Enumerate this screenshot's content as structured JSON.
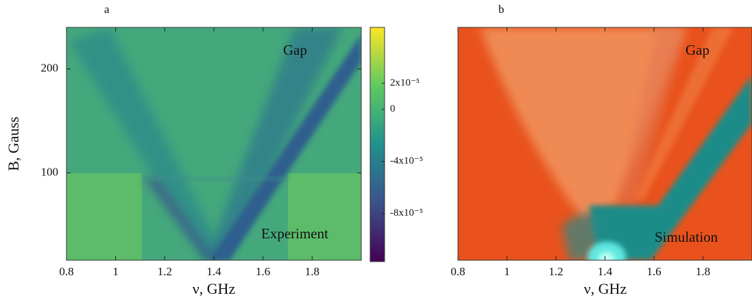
{
  "chart_data": [
    {
      "type": "heatmap",
      "label": "a",
      "xlabel": "ν, GHz",
      "ylabel": "B, Gauss",
      "xlim": [
        0.8,
        2.0
      ],
      "xticks": [
        0.8,
        1,
        1.2,
        1.4,
        1.6,
        1.8
      ],
      "ylim": [
        16,
        240
      ],
      "yticks": [
        100,
        200
      ],
      "annotations": [
        "Gap",
        "Experiment"
      ],
      "colorbar": {
        "lim": [
          -0.000117,
          6.3e-05
        ],
        "ticks": [
          {
            "value": 2e-05,
            "label": "2x10⁻⁵"
          },
          0,
          {
            "value": -4e-05,
            "label": "-4x10⁻⁵"
          },
          {
            "value": -8e-05,
            "label": "-8x10⁻⁵"
          }
        ]
      }
    },
    {
      "type": "heatmap",
      "label": "b",
      "xlabel": "ν, GHz",
      "xlim": [
        0.8,
        2.0
      ],
      "xticks": [
        0.8,
        1,
        1.2,
        1.4,
        1.6,
        1.8
      ],
      "annotations": [
        "Gap",
        "Simulation"
      ]
    }
  ]
}
